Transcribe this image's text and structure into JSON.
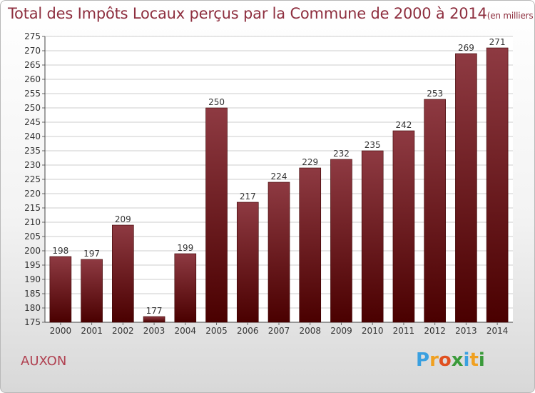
{
  "chart_data": {
    "type": "bar",
    "title": "Total des Impôts Locaux perçus par la Commune de 2000 à 2014",
    "unit_label": "(en milliers d'€)",
    "categories": [
      "2000",
      "2001",
      "2002",
      "2003",
      "2004",
      "2005",
      "2006",
      "2007",
      "2008",
      "2009",
      "2010",
      "2011",
      "2012",
      "2013",
      "2014"
    ],
    "values": [
      198,
      197,
      209,
      177,
      199,
      250,
      217,
      224,
      229,
      232,
      235,
      242,
      253,
      269,
      271
    ],
    "ylim": [
      175,
      275
    ],
    "ytick_step": 5,
    "grid": true,
    "xlabel": "",
    "ylabel": "",
    "colors": {
      "bar_top": "#8e3a42",
      "bar_bottom": "#4a0000",
      "grid": "#cccccc",
      "text": "#333333"
    }
  },
  "commune": "AUXON",
  "logo": {
    "letters": [
      "P",
      "r",
      "o",
      "x",
      "i",
      "t",
      "i"
    ],
    "colors": [
      "#3aa0e0",
      "#f0a020",
      "#e05020",
      "#3a9a3a",
      "#3aa0e0",
      "#f0a020",
      "#3a9a3a"
    ]
  }
}
